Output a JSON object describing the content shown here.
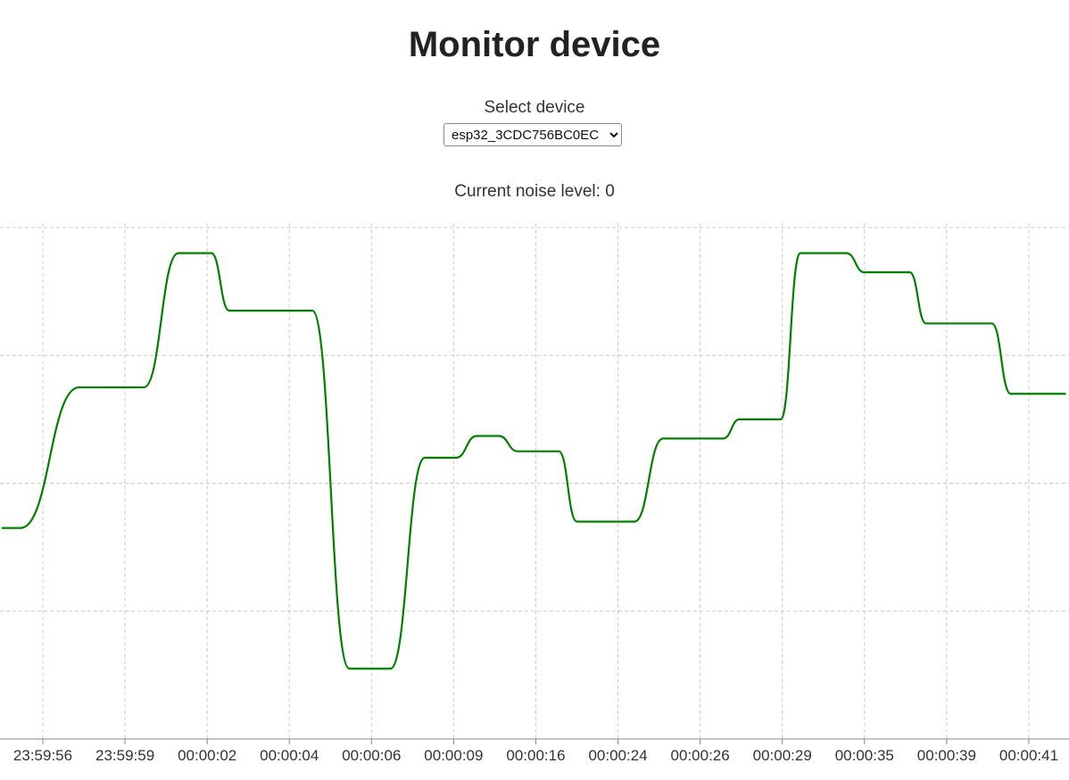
{
  "page": {
    "title": "Monitor device",
    "select_label": "Select device",
    "selected_device": "esp32_3CDC756BC0EC",
    "noise_label": "Current noise level:",
    "noise_value": "0"
  },
  "colors": {
    "series_line": "#008000",
    "grid": "#cccccc",
    "axis": "#888888",
    "text": "#333333"
  },
  "chart_data": {
    "type": "line",
    "title": "",
    "xlabel": "",
    "ylabel": "",
    "grid": true,
    "categories": [
      "23:59:56",
      "23:59:59",
      "00:00:02",
      "00:00:04",
      "00:00:06",
      "00:00:09",
      "00:00:16",
      "00:00:24",
      "00:00:26",
      "00:00:29",
      "00:00:35",
      "00:00:39",
      "00:00:41"
    ],
    "ylim": [
      0,
      4
    ],
    "x_range": [
      -0.5,
      12.45
    ],
    "series": [
      {
        "name": "",
        "points": [
          [
            -0.5,
            1.65
          ],
          [
            -0.27,
            1.65
          ],
          [
            0.44,
            2.75
          ],
          [
            1.23,
            2.75
          ],
          [
            1.65,
            3.8
          ],
          [
            2.05,
            3.8
          ],
          [
            2.27,
            3.35
          ],
          [
            3.28,
            3.35
          ],
          [
            3.73,
            0.55
          ],
          [
            4.23,
            0.55
          ],
          [
            4.65,
            2.2
          ],
          [
            5.03,
            2.2
          ],
          [
            5.28,
            2.37
          ],
          [
            5.55,
            2.37
          ],
          [
            5.78,
            2.25
          ],
          [
            6.28,
            2.25
          ],
          [
            6.5,
            1.7
          ],
          [
            7.2,
            1.7
          ],
          [
            7.55,
            2.35
          ],
          [
            8.28,
            2.35
          ],
          [
            8.48,
            2.5
          ],
          [
            8.98,
            2.5
          ],
          [
            9.22,
            3.8
          ],
          [
            9.78,
            3.8
          ],
          [
            10.0,
            3.65
          ],
          [
            10.55,
            3.65
          ],
          [
            10.75,
            3.25
          ],
          [
            11.55,
            3.25
          ],
          [
            11.78,
            2.7
          ],
          [
            12.45,
            2.7
          ]
        ]
      }
    ]
  }
}
